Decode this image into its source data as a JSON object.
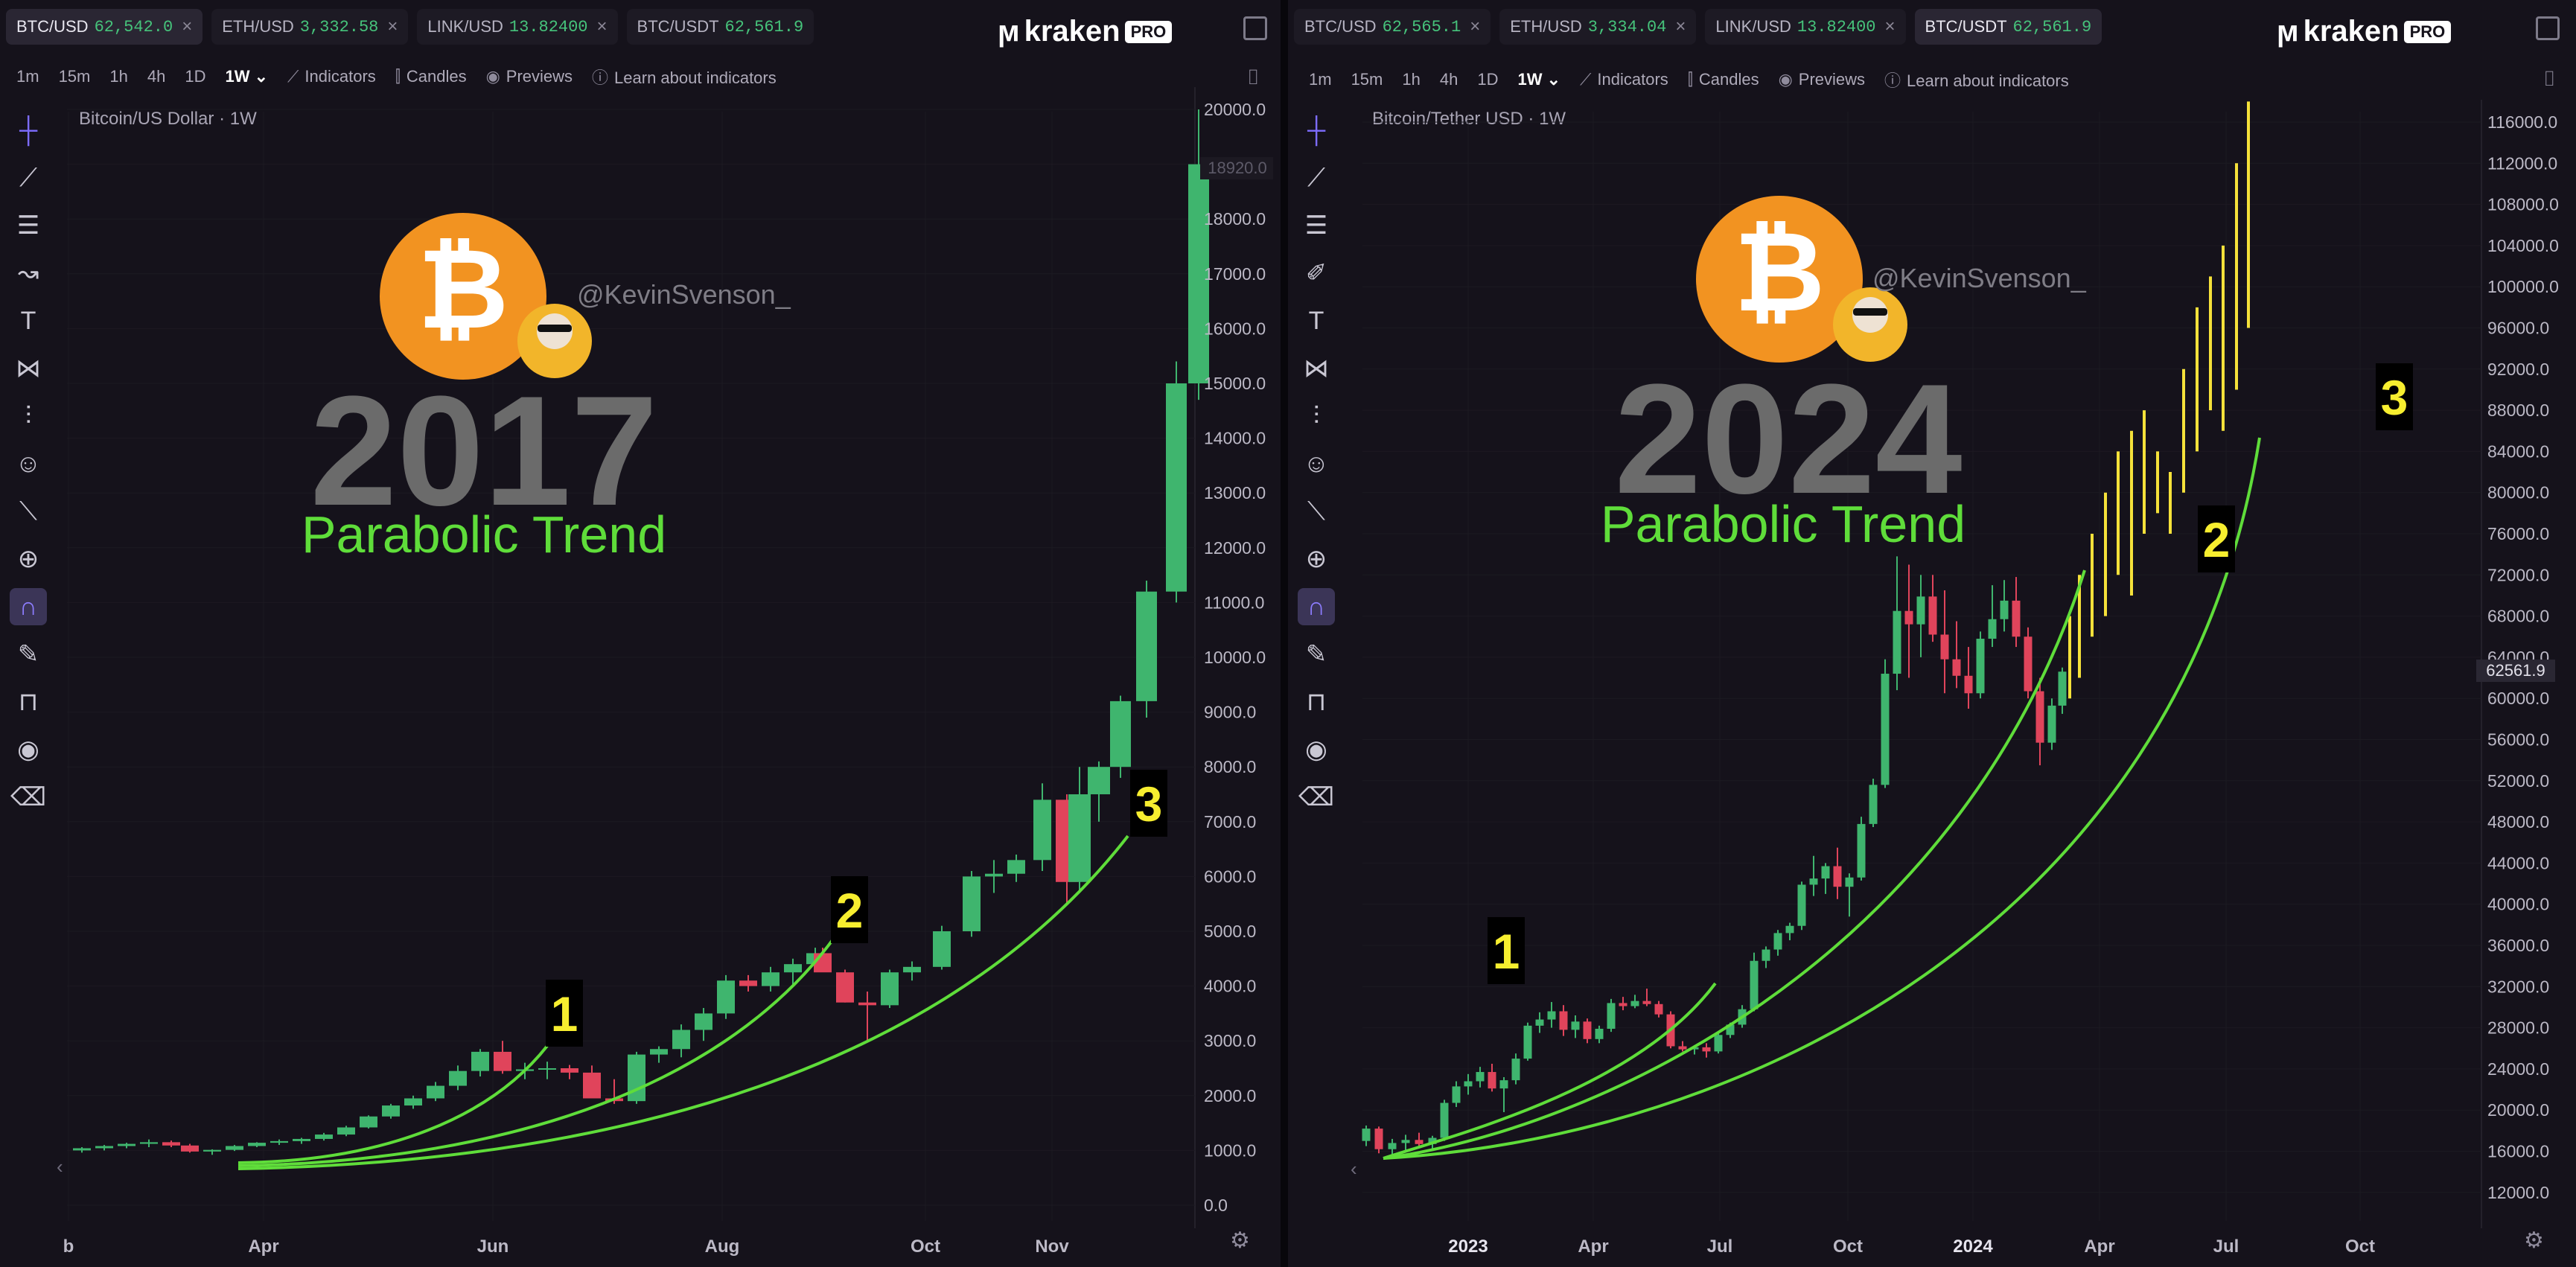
{
  "left": {
    "tabs": [
      {
        "pair": "BTC/USD",
        "price": "62,542.0",
        "active": true
      },
      {
        "pair": "ETH/USD",
        "price": "3,332.58",
        "active": false
      },
      {
        "pair": "LINK/USD",
        "price": "13.82400",
        "active": false
      },
      {
        "pair": "BTC/USDT",
        "price": "62,561.9",
        "active": false
      }
    ],
    "brand": "kraken",
    "brand_badge": "PRO",
    "intervals": [
      "1m",
      "15m",
      "1h",
      "4h",
      "1D",
      "1W"
    ],
    "selected_interval": "1W",
    "toolbar": {
      "indicators": "Indicators",
      "candles": "Candles",
      "previews": "Previews",
      "learn": "Learn about indicators"
    },
    "chart_title": "Bitcoin/US Dollar · 1W",
    "overlay": {
      "handle": "@KevinSvenson_",
      "year": "2017",
      "subtitle": "Parabolic Trend"
    },
    "price_tag": "18920.0",
    "y_ticks": [
      "20000.0",
      "19000.0",
      "18000.0",
      "17000.0",
      "16000.0",
      "15000.0",
      "14000.0",
      "13000.0",
      "12000.0",
      "11000.0",
      "10000.0",
      "9000.0",
      "8000.0",
      "7000.0",
      "6000.0",
      "5000.0",
      "4000.0",
      "3000.0",
      "2000.0",
      "1000.0",
      "0.0"
    ],
    "x_ticks": [
      "b",
      "Apr",
      "Jun",
      "Aug",
      "Oct",
      "Nov"
    ],
    "markers": [
      "1",
      "2",
      "3"
    ]
  },
  "right": {
    "tabs": [
      {
        "pair": "BTC/USD",
        "price": "62,565.1",
        "active": false
      },
      {
        "pair": "ETH/USD",
        "price": "3,334.04",
        "active": false
      },
      {
        "pair": "LINK/USD",
        "price": "13.82400",
        "active": false
      },
      {
        "pair": "BTC/USDT",
        "price": "62,561.9",
        "active": true
      }
    ],
    "brand": "kraken",
    "brand_badge": "PRO",
    "intervals": [
      "1m",
      "15m",
      "1h",
      "4h",
      "1D",
      "1W"
    ],
    "selected_interval": "1W",
    "toolbar": {
      "indicators": "Indicators",
      "candles": "Candles",
      "previews": "Previews",
      "learn": "Learn about indicators"
    },
    "chart_title": "Bitcoin/Tether USD · 1W",
    "overlay": {
      "handle": "@KevinSvenson_",
      "year": "2024",
      "subtitle": "Parabolic Trend"
    },
    "price_tag": "62561.9",
    "y_ticks": [
      "116000.0",
      "112000.0",
      "108000.0",
      "104000.0",
      "100000.0",
      "96000.0",
      "92000.0",
      "88000.0",
      "84000.0",
      "80000.0",
      "76000.0",
      "72000.0",
      "68000.0",
      "64000.0",
      "60000.0",
      "56000.0",
      "52000.0",
      "48000.0",
      "44000.0",
      "40000.0",
      "36000.0",
      "32000.0",
      "28000.0",
      "24000.0",
      "20000.0",
      "16000.0",
      "12000.0"
    ],
    "x_ticks": [
      "2023",
      "Apr",
      "Jul",
      "Oct",
      "2024",
      "Apr",
      "Jul",
      "Oct"
    ],
    "markers": [
      "1",
      "2",
      "3"
    ]
  },
  "colors": {
    "up": "#3fb56e",
    "down": "#e0445b",
    "projection": "#f5e13a",
    "curve": "#5fdd3a",
    "marker_text": "#f7ee2f",
    "bitcoin_orange": "#f29321",
    "year_text": "#6b6b6b",
    "subtitle": "#5fdd3a"
  },
  "icons": [
    "crosshair-icon",
    "trendline-icon",
    "horizontal-lines-icon",
    "path-icon",
    "text-icon",
    "pattern-icon",
    "forecast-icon",
    "emoji-icon",
    "ruler-icon",
    "zoom-in-icon",
    "magnet-icon",
    "lock-draw-icon",
    "unlock-icon",
    "eye-icon",
    "trash-icon"
  ]
}
